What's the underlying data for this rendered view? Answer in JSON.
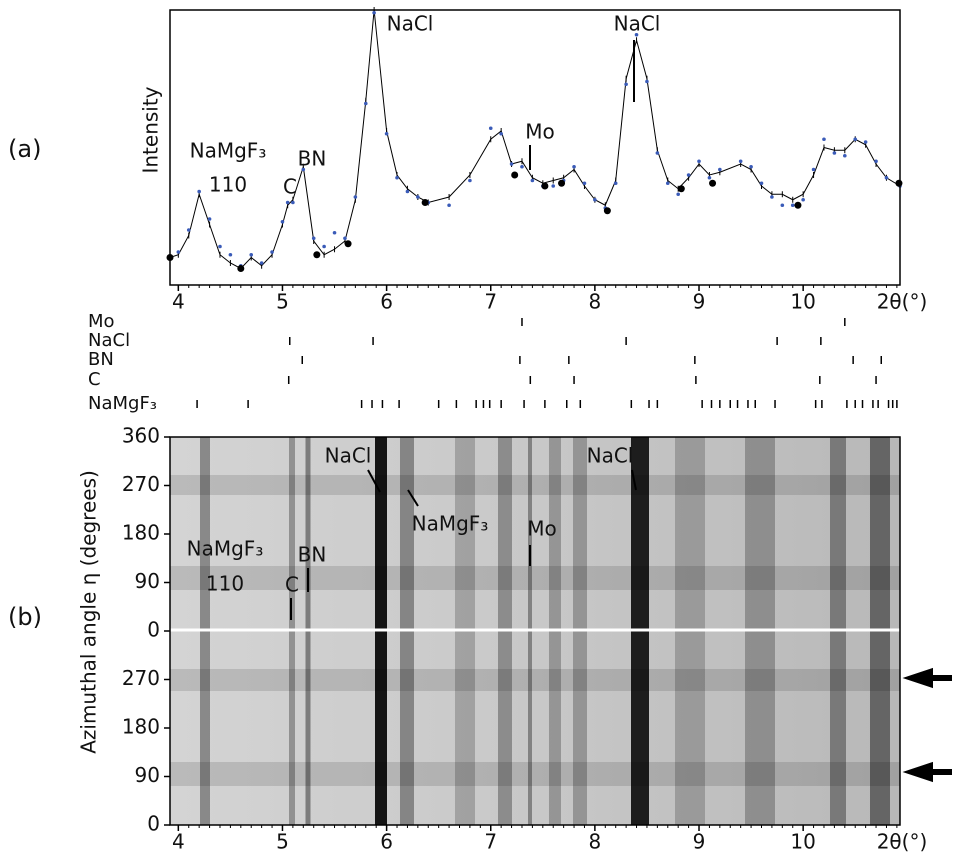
{
  "panel_labels": [
    "(a)",
    "(b)"
  ],
  "chart_data": [
    {
      "type": "line",
      "ylabel": "Intensity",
      "xlabel": "2θ(°)",
      "annotations": [
        "NaMgF₃",
        "110",
        "C",
        "BN",
        "NaCl",
        "NaCl",
        "Mo"
      ],
      "x": [
        3.92,
        4.0,
        4.1,
        4.2,
        4.3,
        4.4,
        4.5,
        4.6,
        4.7,
        4.8,
        4.9,
        5.0,
        5.05,
        5.1,
        5.2,
        5.3,
        5.4,
        5.5,
        5.6,
        5.7,
        5.8,
        5.88,
        6.0,
        6.1,
        6.2,
        6.3,
        6.4,
        6.6,
        6.8,
        7.0,
        7.1,
        7.2,
        7.3,
        7.4,
        7.5,
        7.6,
        7.7,
        7.8,
        7.9,
        8.0,
        8.1,
        8.2,
        8.3,
        8.4,
        8.5,
        8.6,
        8.7,
        8.8,
        8.9,
        9.0,
        9.1,
        9.2,
        9.4,
        9.5,
        9.6,
        9.7,
        9.8,
        9.9,
        10.0,
        10.1,
        10.2,
        10.3,
        10.4,
        10.5,
        10.6,
        10.7,
        10.8,
        10.93
      ],
      "series": [
        {
          "color": "#000000",
          "mode": "line",
          "values": [
            10,
            11,
            18,
            33,
            22,
            11,
            8,
            6,
            10,
            7,
            11,
            22,
            29,
            31,
            43,
            16,
            11,
            13,
            16,
            31,
            67,
            100,
            56,
            40,
            35,
            32,
            30,
            32,
            40,
            53,
            56,
            44,
            45,
            39,
            37,
            38,
            39,
            42,
            36,
            31,
            29,
            38,
            75,
            89,
            75,
            49,
            38,
            35,
            39,
            44,
            40,
            41,
            44,
            42,
            36,
            33,
            33,
            31,
            33,
            40,
            50,
            49,
            49,
            53,
            51,
            44,
            39,
            36
          ]
        },
        {
          "color": "#3a5bb8",
          "mode": "markers",
          "values": [
            10,
            12,
            20,
            34,
            24,
            14,
            11,
            7,
            11,
            8,
            12,
            23,
            30,
            30,
            42,
            17,
            14,
            19,
            17,
            32,
            66,
            99,
            55,
            39,
            34,
            32,
            30,
            29,
            38,
            57,
            55,
            44,
            43,
            38,
            36,
            36,
            38,
            43,
            37,
            31,
            28,
            37,
            73,
            91,
            74,
            48,
            37,
            33,
            40,
            45,
            39,
            42,
            45,
            43,
            37,
            32,
            29,
            29,
            31,
            42,
            53,
            48,
            47,
            53,
            52,
            45,
            39,
            36
          ]
        },
        {
          "color": "#000000",
          "mode": "points",
          "x": [
            3.92,
            4.6,
            5.33,
            5.63,
            6.37,
            7.23,
            7.52,
            7.68,
            8.12,
            8.83,
            9.13,
            9.95,
            10.92
          ],
          "values": [
            10,
            6,
            11,
            15,
            30,
            40,
            36,
            37,
            27,
            35,
            37,
            29,
            37
          ]
        }
      ],
      "xlim": [
        3.92,
        10.93
      ],
      "ylim": [
        0,
        100
      ],
      "xticks": [
        4,
        5,
        6,
        7,
        8,
        9,
        10
      ]
    },
    {
      "type": "rug",
      "xlim": [
        3.92,
        10.93
      ],
      "series": [
        {
          "name": "Mo",
          "values": [
            7.3,
            10.4
          ]
        },
        {
          "name": "NaCl",
          "values": [
            5.07,
            5.87,
            8.3,
            9.75,
            10.17
          ]
        },
        {
          "name": "BN",
          "values": [
            5.19,
            7.28,
            7.75,
            8.96,
            10.48,
            10.75
          ]
        },
        {
          "name": "C",
          "values": [
            5.06,
            7.38,
            7.8,
            8.97,
            10.16,
            10.7
          ]
        },
        {
          "name": "NaMgF₃",
          "values": [
            4.18,
            4.67,
            5.76,
            5.86,
            5.96,
            6.12,
            6.5,
            6.67,
            6.86,
            6.93,
            6.99,
            7.1,
            7.32,
            7.52,
            7.73,
            7.86,
            8.35,
            8.52,
            8.6,
            9.03,
            9.12,
            9.2,
            9.3,
            9.37,
            9.47,
            9.54,
            9.73,
            10.12,
            10.18,
            10.42,
            10.5,
            10.57,
            10.67,
            10.72,
            10.82,
            10.86,
            10.9
          ]
        }
      ]
    },
    {
      "type": "image",
      "ylabel": "Azimuthal angle η (degrees)",
      "xlabel": "2θ(°)",
      "annotations": [
        "NaCl",
        "NaCl",
        "NaMgF₃",
        "Mo",
        "NaMgF₃",
        "110",
        "BN",
        "C"
      ],
      "xlim": [
        3.92,
        10.93
      ],
      "ylim": [
        0,
        720
      ],
      "xticks": [
        4,
        5,
        6,
        7,
        8,
        9,
        10
      ],
      "yticks": [
        0,
        90,
        180,
        270,
        {
          "value": 360,
          "label": "0"
        },
        {
          "value": 450,
          "label": "90"
        },
        {
          "value": 540,
          "label": "180"
        },
        {
          "value": 630,
          "label": "270"
        },
        {
          "value": 720,
          "label": "360"
        }
      ]
    }
  ]
}
